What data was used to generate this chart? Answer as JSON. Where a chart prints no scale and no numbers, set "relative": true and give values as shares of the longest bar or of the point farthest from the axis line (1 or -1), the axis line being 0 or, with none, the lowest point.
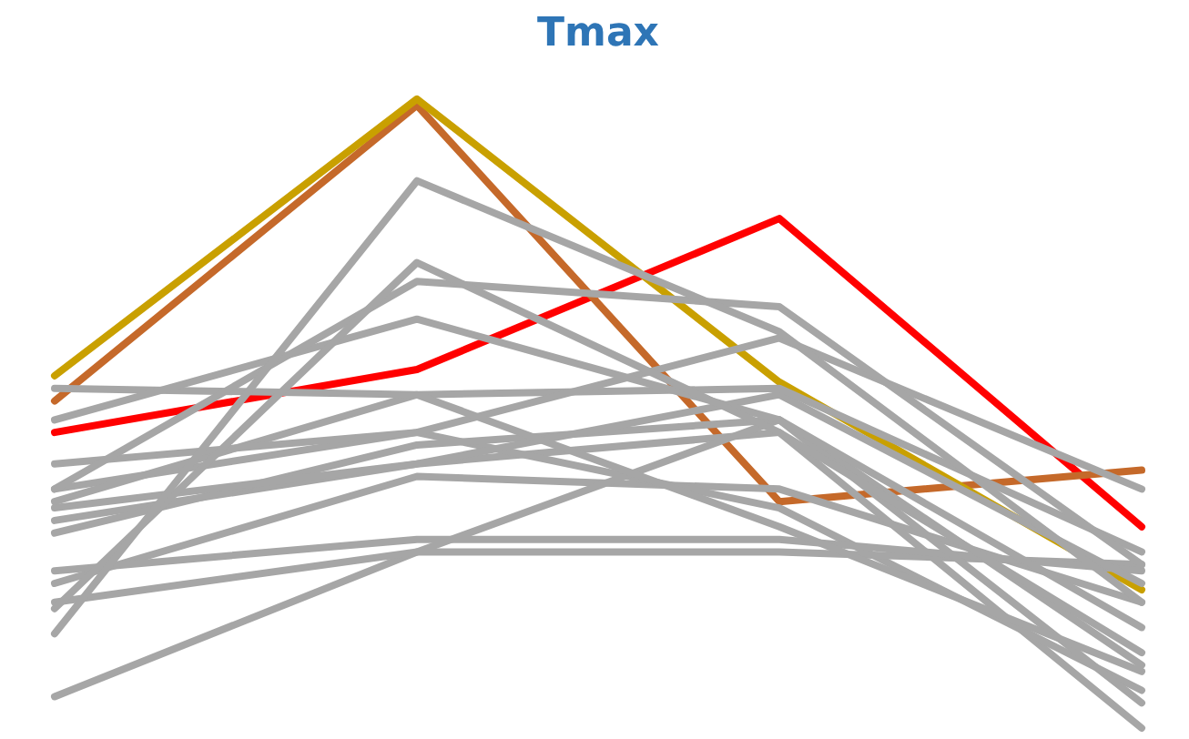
{
  "chart_data": {
    "type": "line",
    "title": "Tmax",
    "relative": true,
    "legend": false,
    "marker": "none",
    "line_style": "solid",
    "categories": [
      null,
      null,
      null,
      null
    ],
    "series": [
      {
        "color": "#a6a6a6",
        "values": [
          0.15,
          0.87,
          0.63,
          0.2
        ]
      },
      {
        "color": "#a6a6a6",
        "values": [
          0.19,
          0.74,
          0.47,
          0.12
        ]
      },
      {
        "color": "#a6a6a6",
        "values": [
          0.38,
          0.71,
          0.67,
          0.26
        ]
      },
      {
        "color": "#a6a6a6",
        "values": [
          0.49,
          0.65,
          0.49,
          0.16
        ]
      },
      {
        "color": "#a6a6a6",
        "values": [
          0.54,
          0.53,
          0.32,
          0.09
        ]
      },
      {
        "color": "#a6a6a6",
        "values": [
          0.42,
          0.47,
          0.62,
          0.38
        ]
      },
      {
        "color": "#a6a6a6",
        "values": [
          0.36,
          0.53,
          0.54,
          0.28
        ]
      },
      {
        "color": "#a6a6a6",
        "values": [
          0.35,
          0.42,
          0.53,
          0.23
        ]
      },
      {
        "color": "#a6a6a6",
        "values": [
          0.31,
          0.45,
          0.49,
          0.04
        ]
      },
      {
        "color": "#a6a6a6",
        "values": [
          0.25,
          0.3,
          0.3,
          0.25
        ]
      },
      {
        "color": "#a6a6a6",
        "values": [
          0.2,
          0.28,
          0.28,
          0.26
        ]
      },
      {
        "color": "#a6a6a6",
        "values": [
          0.05,
          0.28,
          0.49,
          0.1
        ]
      },
      {
        "color": "#a6a6a6",
        "values": [
          0.38,
          0.47,
          0.35,
          0.06
        ]
      },
      {
        "color": "#a6a6a6",
        "values": [
          0.33,
          0.42,
          0.47,
          0
        ]
      },
      {
        "color": "#a6a6a6",
        "values": [
          0.23,
          0.4,
          0.38,
          0.2
        ]
      },
      {
        "color": "#c9a000",
        "values": [
          0.56,
          1,
          0.55,
          0.22
        ]
      },
      {
        "color": "#c5692a",
        "values": [
          0.52,
          0.99,
          0.36,
          0.41
        ]
      },
      {
        "color": "#ff0000",
        "values": [
          0.47,
          0.57,
          0.81,
          0.32
        ]
      }
    ]
  }
}
